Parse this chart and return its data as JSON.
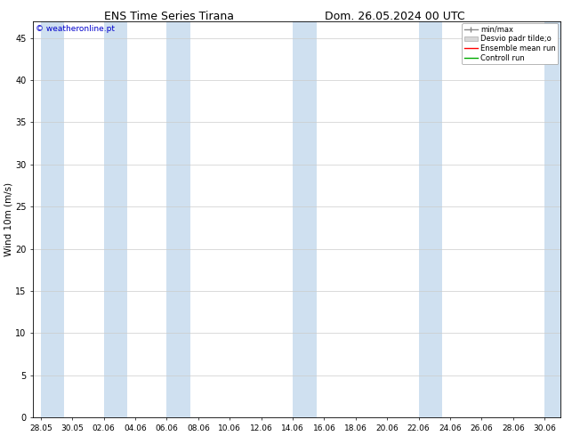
{
  "title_left": "ENS Time Series Tirana",
  "title_right": "Dom. 26.05.2024 00 UTC",
  "ylabel": "Wind 10m (m/s)",
  "watermark": "© weatheronline.pt",
  "ylim": [
    0,
    47
  ],
  "yticks": [
    0,
    5,
    10,
    15,
    20,
    25,
    30,
    35,
    40,
    45
  ],
  "xlabel_ticks": [
    "28.05",
    "30.05",
    "02.06",
    "04.06",
    "06.06",
    "08.06",
    "10.06",
    "12.06",
    "14.06",
    "16.06",
    "18.06",
    "20.06",
    "22.06",
    "24.06",
    "26.06",
    "28.06",
    "30.06"
  ],
  "x_values": [
    0,
    2,
    4,
    6,
    8,
    10,
    12,
    14,
    16,
    18,
    20,
    22,
    24,
    26,
    28,
    30,
    32
  ],
  "shaded_x_centers": [
    0,
    4,
    8,
    16,
    24,
    32
  ],
  "shaded_color": "#cfe0f0",
  "background_color": "#ffffff",
  "plot_bg_color": "#ffffff",
  "legend_entries": [
    "min/max",
    "Desvio padr tilde;o",
    "Ensemble mean run",
    "Controll run"
  ],
  "title_fontsize": 9,
  "axis_fontsize": 7.5,
  "tick_fontsize": 7,
  "watermark_color": "#0000cc",
  "minmax_line_color": "#888888",
  "ensemble_color": "#ff0000",
  "control_color": "#00aa00"
}
